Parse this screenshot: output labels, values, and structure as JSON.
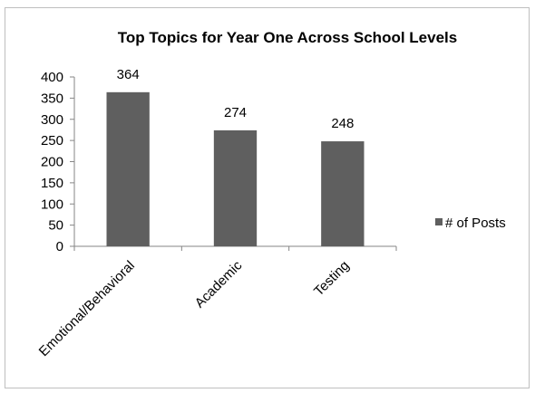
{
  "chart_data": {
    "type": "bar",
    "title": "Top Topics for Year One Across School Levels",
    "categories": [
      "Emotional/Behavioral",
      "Academic",
      "Testing"
    ],
    "series": [
      {
        "name": "# of Posts",
        "values": [
          364,
          274,
          248
        ],
        "color": "#5f5f5f"
      }
    ],
    "data_labels": [
      "364",
      "274",
      "248"
    ],
    "ylim": [
      0,
      400
    ],
    "yticks": [
      0,
      50,
      100,
      150,
      200,
      250,
      300,
      350,
      400
    ],
    "xlabel": "",
    "ylabel": "",
    "grid": false,
    "legend_position": "right"
  }
}
